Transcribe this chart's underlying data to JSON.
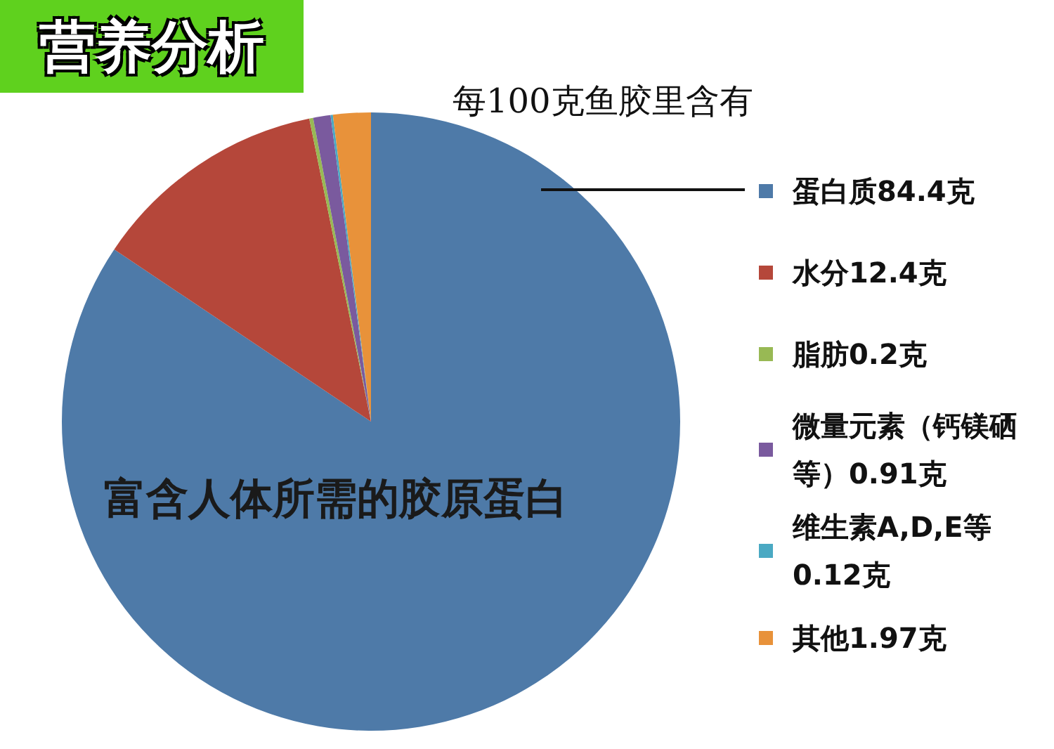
{
  "chart_data": {
    "type": "pie",
    "title": "营养分析",
    "subtitle": "每100克鱼胶里含有",
    "categories": [
      "蛋白质84.4克",
      "水分12.4克",
      "脂肪0.2克",
      "微量元素（钙镁硒等）0.91克",
      "维生素A,D,E等0.12克",
      "其他1.97克"
    ],
    "values": [
      84.4,
      12.4,
      0.2,
      0.91,
      0.12,
      1.97
    ],
    "colors": [
      "#4e7aa8",
      "#b5473a",
      "#98b954",
      "#7a5a9e",
      "#4aa9c3",
      "#e8923a"
    ],
    "legend": "right",
    "annotations": [
      "富含人体所需的胶原蛋白"
    ]
  }
}
